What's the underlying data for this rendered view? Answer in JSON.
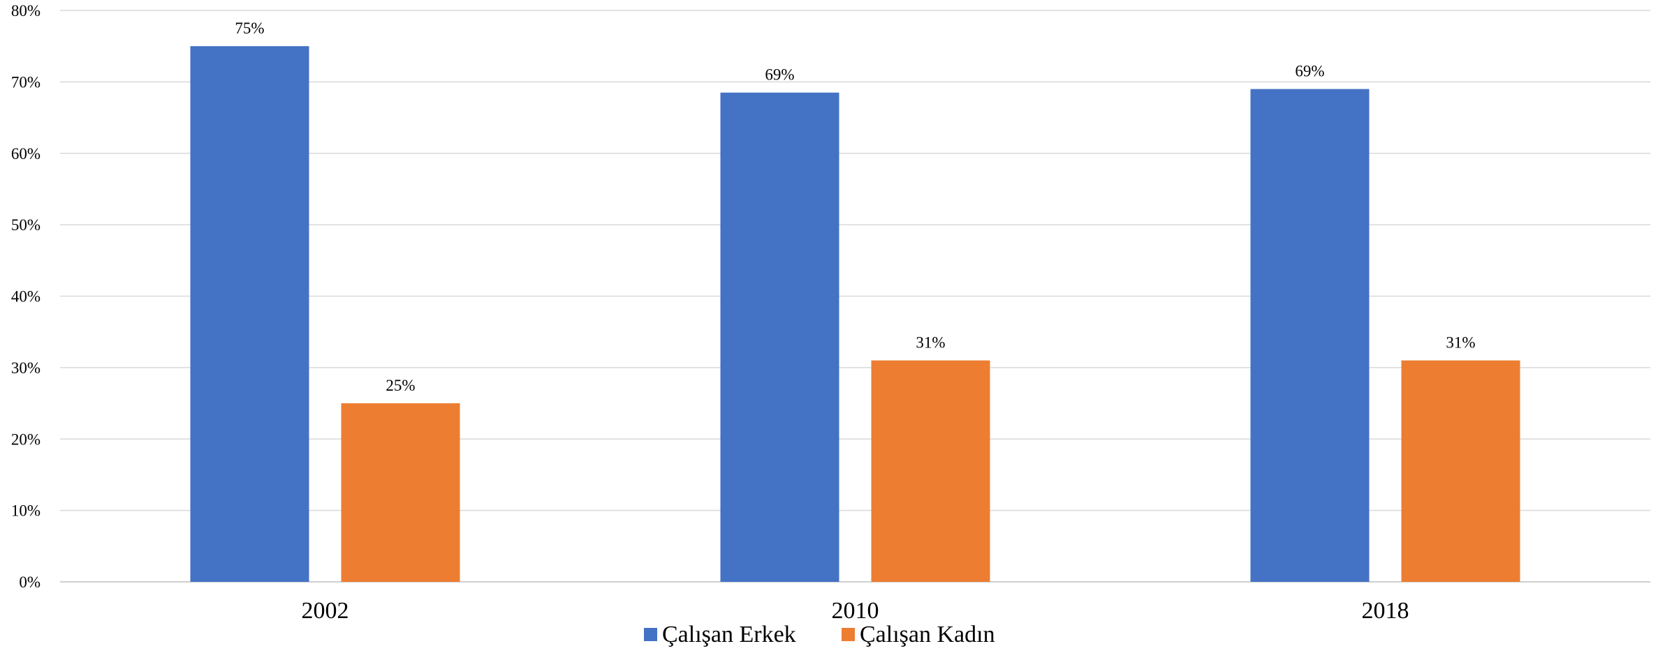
{
  "chart_data": {
    "type": "bar",
    "categories": [
      "2002",
      "2010",
      "2018"
    ],
    "series": [
      {
        "name": "Çalışan Erkek",
        "values": [
          75,
          68.5,
          69
        ],
        "labels": [
          "75%",
          "69%",
          "69%"
        ],
        "color": "#4472c4"
      },
      {
        "name": "Çalışan Kadın",
        "values": [
          25,
          31,
          31
        ],
        "labels": [
          "25%",
          "31%",
          "31%"
        ],
        "color": "#ed7d31"
      }
    ],
    "y_ticks": [
      0,
      10,
      20,
      30,
      40,
      50,
      60,
      70,
      80
    ],
    "y_tick_labels": [
      "0%",
      "10%",
      "20%",
      "30%",
      "40%",
      "50%",
      "60%",
      "70%",
      "80%"
    ],
    "ylim": [
      0,
      80
    ],
    "title": "",
    "xlabel": "",
    "ylabel": "",
    "grid": true,
    "legend_position": "bottom"
  }
}
